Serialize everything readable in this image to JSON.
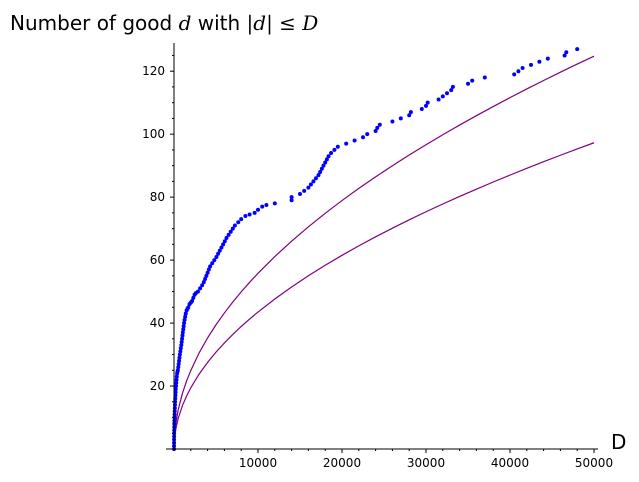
{
  "chart_data": {
    "type": "scatter",
    "title": {
      "prefix": "Number of good ",
      "math1": "d",
      "mid": " with ",
      "math2": "|d| ≤ D"
    },
    "xlabel": "D",
    "ylabel": "",
    "xlim": [
      0,
      50000
    ],
    "ylim": [
      0,
      128
    ],
    "x_ticks": [
      10000,
      20000,
      30000,
      40000,
      50000
    ],
    "x_tick_labels": [
      "10000",
      "20000",
      "30000",
      "40000",
      "50000"
    ],
    "y_ticks": [
      20,
      40,
      60,
      80,
      100,
      120
    ],
    "y_tick_labels": [
      "20",
      "40",
      "60",
      "80",
      "100",
      "120"
    ],
    "grid": false,
    "legend": "none",
    "colors": {
      "points": "#0000ff",
      "curves": "#800080"
    },
    "series": [
      {
        "kind": "points",
        "points": [
          [
            3,
            0
          ],
          [
            5,
            1
          ],
          [
            8,
            2
          ],
          [
            12,
            3
          ],
          [
            16,
            4
          ],
          [
            20,
            5
          ],
          [
            26,
            6
          ],
          [
            32,
            7
          ],
          [
            40,
            8
          ],
          [
            50,
            9
          ],
          [
            60,
            10
          ],
          [
            72,
            11
          ],
          [
            85,
            12
          ],
          [
            100,
            13
          ],
          [
            115,
            14
          ],
          [
            130,
            15
          ],
          [
            150,
            16
          ],
          [
            170,
            17
          ],
          [
            190,
            18
          ],
          [
            210,
            19
          ],
          [
            240,
            20
          ],
          [
            270,
            21
          ],
          [
            300,
            22
          ],
          [
            330,
            23
          ],
          [
            370,
            24
          ],
          [
            410,
            24.5
          ],
          [
            460,
            25
          ],
          [
            510,
            26
          ],
          [
            560,
            27
          ],
          [
            600,
            28
          ],
          [
            650,
            29
          ],
          [
            700,
            30
          ],
          [
            760,
            31
          ],
          [
            810,
            32
          ],
          [
            870,
            33
          ],
          [
            920,
            34
          ],
          [
            960,
            35
          ],
          [
            1010,
            36
          ],
          [
            1050,
            37
          ],
          [
            1100,
            38
          ],
          [
            1150,
            39
          ],
          [
            1200,
            40
          ],
          [
            1260,
            41
          ],
          [
            1330,
            42
          ],
          [
            1400,
            43
          ],
          [
            1500,
            44
          ],
          [
            1600,
            44.5
          ],
          [
            1700,
            45
          ],
          [
            1850,
            46
          ],
          [
            2000,
            46.5
          ],
          [
            2150,
            47
          ],
          [
            2300,
            48
          ],
          [
            2450,
            49
          ],
          [
            2600,
            49.5
          ],
          [
            2850,
            50
          ],
          [
            3100,
            51
          ],
          [
            3350,
            52
          ],
          [
            3550,
            53
          ],
          [
            3700,
            54
          ],
          [
            3850,
            55
          ],
          [
            4000,
            56
          ],
          [
            4150,
            57
          ],
          [
            4300,
            58
          ],
          [
            4550,
            59
          ],
          [
            4800,
            60
          ],
          [
            5050,
            61
          ],
          [
            5250,
            62
          ],
          [
            5450,
            63
          ],
          [
            5650,
            64
          ],
          [
            5850,
            65
          ],
          [
            6050,
            66
          ],
          [
            6250,
            67
          ],
          [
            6500,
            68
          ],
          [
            6750,
            69
          ],
          [
            7000,
            70
          ],
          [
            7250,
            71
          ],
          [
            7650,
            72
          ],
          [
            8000,
            73
          ],
          [
            8500,
            74
          ],
          [
            9000,
            74.5
          ],
          [
            9600,
            75
          ],
          [
            10000,
            76
          ],
          [
            10500,
            77
          ],
          [
            11000,
            77.5
          ],
          [
            12000,
            78
          ],
          [
            14000,
            79
          ],
          [
            14000,
            80
          ],
          [
            15000,
            81
          ],
          [
            15500,
            82
          ],
          [
            16000,
            83
          ],
          [
            16300,
            84
          ],
          [
            16600,
            85
          ],
          [
            16900,
            86
          ],
          [
            17200,
            87
          ],
          [
            17400,
            88
          ],
          [
            17600,
            89
          ],
          [
            17800,
            90
          ],
          [
            18000,
            91
          ],
          [
            18200,
            92
          ],
          [
            18400,
            93
          ],
          [
            18700,
            94
          ],
          [
            19100,
            95
          ],
          [
            19500,
            96
          ],
          [
            20500,
            97
          ],
          [
            21500,
            98
          ],
          [
            22500,
            99
          ],
          [
            23000,
            100
          ],
          [
            24000,
            101
          ],
          [
            24200,
            102
          ],
          [
            24500,
            103
          ],
          [
            26000,
            104
          ],
          [
            27000,
            105
          ],
          [
            28000,
            106
          ],
          [
            28200,
            107
          ],
          [
            29500,
            108
          ],
          [
            30000,
            109
          ],
          [
            30200,
            110
          ],
          [
            31500,
            111
          ],
          [
            32000,
            112
          ],
          [
            32500,
            113
          ],
          [
            33000,
            114
          ],
          [
            33200,
            115
          ],
          [
            35000,
            116
          ],
          [
            35500,
            117
          ],
          [
            37000,
            118
          ],
          [
            40500,
            119
          ],
          [
            41000,
            120
          ],
          [
            41500,
            121
          ],
          [
            42500,
            122
          ],
          [
            43500,
            123
          ],
          [
            44500,
            124
          ],
          [
            46500,
            125
          ],
          [
            46700,
            126
          ],
          [
            48000,
            127
          ]
        ]
      },
      {
        "kind": "curve",
        "formula": "0.435 * sqrt(x)",
        "points": [
          [
            0,
            0
          ],
          [
            50,
            3.08
          ],
          [
            200,
            6.15
          ],
          [
            500,
            9.73
          ],
          [
            1000,
            13.76
          ],
          [
            1500,
            16.85
          ],
          [
            2000,
            19.45
          ],
          [
            3000,
            23.83
          ],
          [
            4000,
            27.51
          ],
          [
            5000,
            30.76
          ],
          [
            6000,
            33.69
          ],
          [
            7000,
            36.39
          ],
          [
            8000,
            38.91
          ],
          [
            9000,
            41.27
          ],
          [
            10000,
            43.5
          ],
          [
            12000,
            47.65
          ],
          [
            14000,
            51.47
          ],
          [
            16000,
            55.02
          ],
          [
            18000,
            58.36
          ],
          [
            20000,
            61.52
          ],
          [
            22000,
            64.52
          ],
          [
            24000,
            67.39
          ],
          [
            26000,
            70.14
          ],
          [
            28000,
            72.79
          ],
          [
            30000,
            75.35
          ],
          [
            32000,
            77.82
          ],
          [
            34000,
            80.21
          ],
          [
            36000,
            82.53
          ],
          [
            38000,
            84.8
          ],
          [
            40000,
            86.99
          ],
          [
            42000,
            89.15
          ],
          [
            44000,
            91.25
          ],
          [
            46000,
            93.3
          ],
          [
            48000,
            95.3
          ],
          [
            50000,
            97.27
          ]
        ]
      },
      {
        "kind": "curve",
        "formula": "0.558 * sqrt(x)",
        "points": [
          [
            0,
            0
          ],
          [
            50,
            3.95
          ],
          [
            200,
            7.89
          ],
          [
            500,
            12.48
          ],
          [
            1000,
            17.65
          ],
          [
            1500,
            21.61
          ],
          [
            2000,
            24.95
          ],
          [
            3000,
            30.56
          ],
          [
            4000,
            35.29
          ],
          [
            5000,
            39.46
          ],
          [
            6000,
            43.22
          ],
          [
            7000,
            46.69
          ],
          [
            8000,
            49.91
          ],
          [
            9000,
            52.94
          ],
          [
            10000,
            55.8
          ],
          [
            12000,
            61.13
          ],
          [
            14000,
            66.02
          ],
          [
            16000,
            70.58
          ],
          [
            18000,
            74.86
          ],
          [
            20000,
            78.91
          ],
          [
            22000,
            82.77
          ],
          [
            24000,
            86.45
          ],
          [
            26000,
            89.98
          ],
          [
            28000,
            93.37
          ],
          [
            30000,
            96.65
          ],
          [
            32000,
            99.82
          ],
          [
            34000,
            102.89
          ],
          [
            36000,
            105.87
          ],
          [
            38000,
            108.77
          ],
          [
            40000,
            111.6
          ],
          [
            42000,
            114.36
          ],
          [
            44000,
            117.05
          ],
          [
            46000,
            119.68
          ],
          [
            48000,
            122.25
          ],
          [
            50000,
            124.77
          ]
        ]
      }
    ]
  }
}
